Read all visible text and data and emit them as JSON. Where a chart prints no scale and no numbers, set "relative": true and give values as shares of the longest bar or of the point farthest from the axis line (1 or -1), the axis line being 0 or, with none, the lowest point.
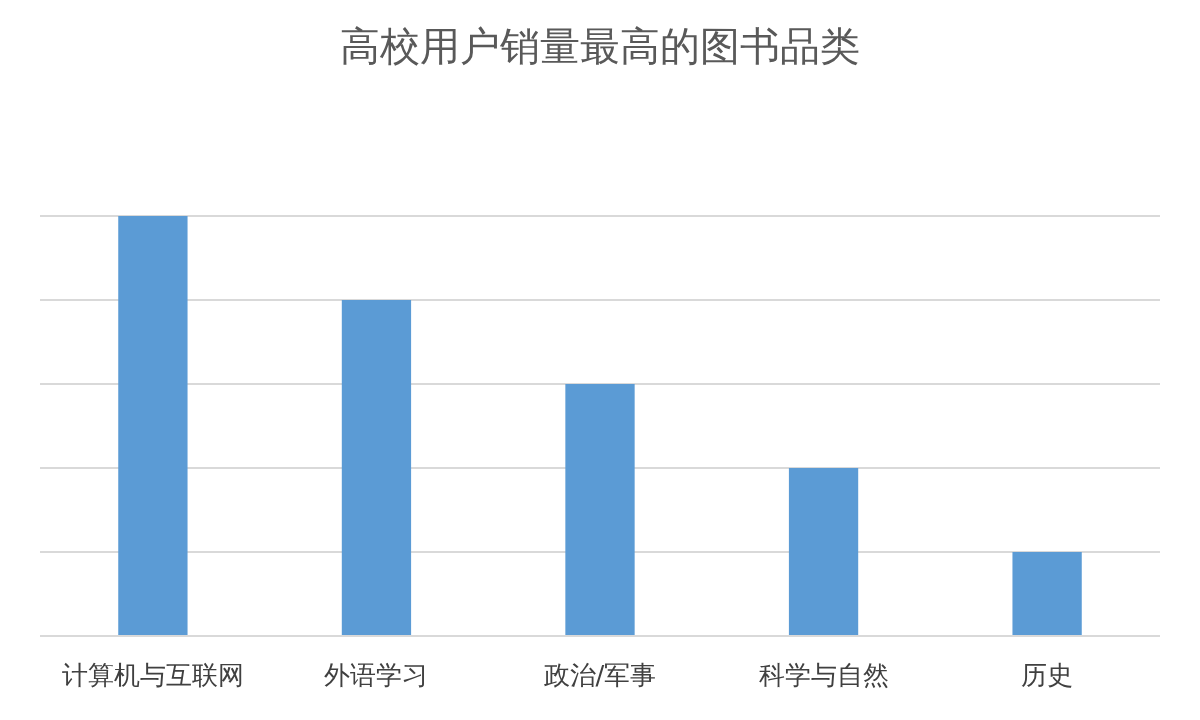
{
  "chart_data": {
    "type": "bar",
    "title": "高校用户销量最高的图书品类",
    "categories": [
      "计算机与互联网",
      "外语学习",
      "政治/军事",
      "科学与自然",
      "历史"
    ],
    "values": [
      1,
      0.8,
      0.6,
      0.4,
      0.2
    ],
    "color": "#5b9bd5",
    "relative": true,
    "grid": "y"
  }
}
